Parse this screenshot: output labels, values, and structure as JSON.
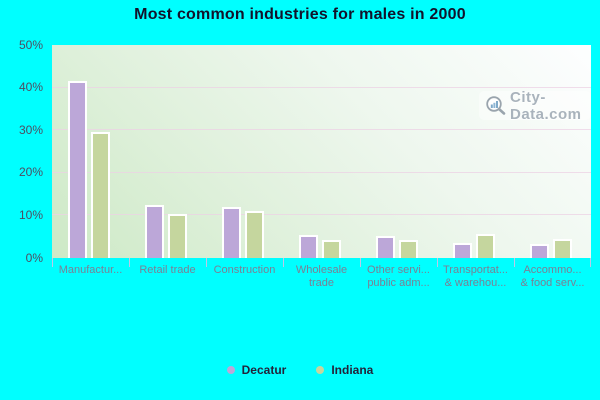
{
  "title": "Most common industries for males in 2000",
  "watermark": {
    "text": "City-Data.com"
  },
  "colors": {
    "background": "#00ffff",
    "decatur_bar": "#bca7d8",
    "indiana_bar": "#c5d69e",
    "plot_gradient_start": "#cde9c6",
    "plot_gradient_end": "#fdfeff",
    "gridline": "#ecd2e4",
    "title_text": "#12122b",
    "axis_text": "#4e4e62",
    "category_text": "#7a8095",
    "watermark_text": "#a9b3bc"
  },
  "chart_data": {
    "type": "bar",
    "title": "Most common industries for males in 2000",
    "categories": [
      "Manufactur...",
      "Retail trade",
      "Construction",
      "Wholesale trade",
      "Other servi... public adm...",
      "Transportat... & warehou...",
      "Accommo... & food serv..."
    ],
    "category_lines": [
      [
        "Manufactur..."
      ],
      [
        "Retail trade"
      ],
      [
        "Construction"
      ],
      [
        "Wholesale",
        "trade"
      ],
      [
        "Other servi...",
        "public adm..."
      ],
      [
        "Transportat...",
        "& warehou..."
      ],
      [
        "Accommo...",
        "& food serv..."
      ]
    ],
    "series": [
      {
        "name": "Decatur",
        "color": "#bca7d8",
        "values": [
          41.5,
          12.5,
          11.9,
          5.4,
          5.1,
          3.5,
          3.3
        ]
      },
      {
        "name": "Indiana",
        "color": "#c5d69e",
        "values": [
          29.5,
          10.4,
          11.0,
          4.2,
          4.3,
          5.7,
          4.5
        ]
      }
    ],
    "xlabel": "",
    "ylabel": "",
    "ylim": [
      0,
      50
    ],
    "yticks": [
      {
        "label": "0%",
        "value": 0
      },
      {
        "label": "10%",
        "value": 10
      },
      {
        "label": "20%",
        "value": 20
      },
      {
        "label": "30%",
        "value": 30
      },
      {
        "label": "40%",
        "value": 40
      },
      {
        "label": "50%",
        "value": 50
      }
    ],
    "gridline_values": [
      10,
      20,
      30,
      40
    ],
    "grid": true,
    "legend_position": "bottom"
  }
}
